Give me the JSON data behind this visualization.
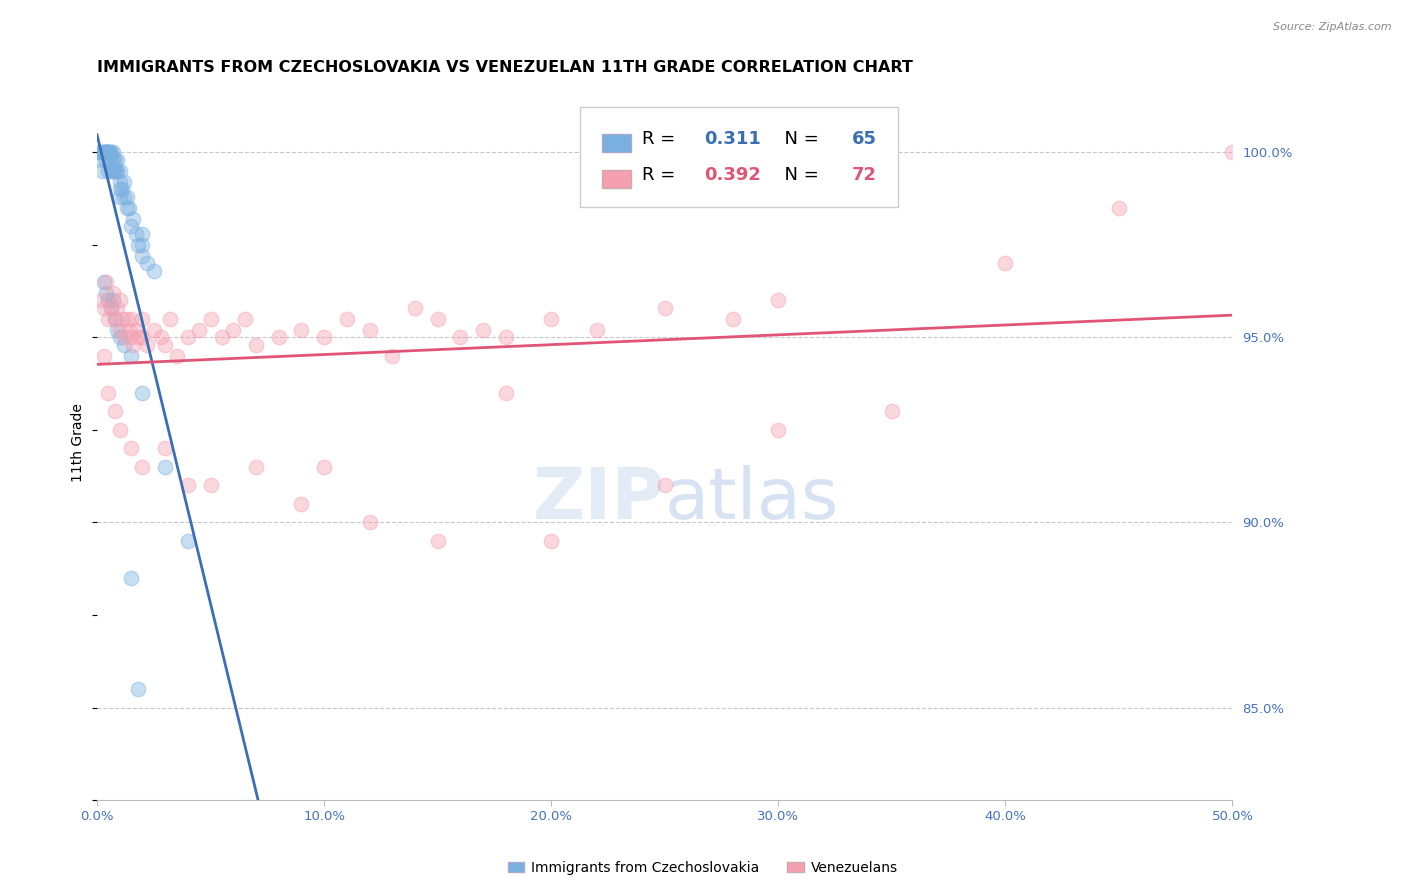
{
  "title": "IMMIGRANTS FROM CZECHOSLOVAKIA VS VENEZUELAN 11TH GRADE CORRELATION CHART",
  "source_text": "Source: ZipAtlas.com",
  "ylabel": "11th Grade",
  "right_yticks": [
    85.0,
    90.0,
    95.0,
    100.0
  ],
  "xmin": 0.0,
  "xmax": 50.0,
  "ymin": 82.5,
  "ymax": 101.8,
  "blue_color": "#7ab0e0",
  "pink_color": "#f4a0b0",
  "blue_line_color": "#3a6eb5",
  "pink_line_color": "#e05575",
  "legend_r_blue": "0.311",
  "legend_n_blue": "65",
  "legend_r_pink": "0.392",
  "legend_n_pink": "72",
  "legend_label_blue": "Immigrants from Czechoslovakia",
  "legend_label_pink": "Venezuelans",
  "blue_scatter_x": [
    0.1,
    0.15,
    0.2,
    0.2,
    0.25,
    0.3,
    0.3,
    0.35,
    0.35,
    0.4,
    0.4,
    0.45,
    0.5,
    0.5,
    0.5,
    0.5,
    0.5,
    0.55,
    0.55,
    0.6,
    0.6,
    0.65,
    0.7,
    0.7,
    0.7,
    0.75,
    0.8,
    0.8,
    0.85,
    0.9,
    0.9,
    1.0,
    1.0,
    1.0,
    1.0,
    1.1,
    1.2,
    1.2,
    1.3,
    1.3,
    1.4,
    1.5,
    1.6,
    1.7,
    1.8,
    2.0,
    2.0,
    2.0,
    2.2,
    2.5,
    0.3,
    0.4,
    0.5,
    0.6,
    0.7,
    0.8,
    0.9,
    1.0,
    1.2,
    1.5,
    2.0,
    3.0,
    4.0,
    1.5,
    1.8
  ],
  "blue_scatter_y": [
    100.0,
    100.0,
    99.8,
    99.5,
    100.0,
    100.0,
    100.0,
    100.0,
    100.0,
    100.0,
    99.8,
    100.0,
    100.0,
    100.0,
    100.0,
    99.5,
    100.0,
    99.8,
    100.0,
    99.8,
    100.0,
    99.5,
    99.5,
    99.8,
    100.0,
    99.5,
    99.5,
    99.8,
    99.5,
    99.5,
    99.8,
    99.2,
    99.0,
    99.5,
    98.8,
    99.0,
    98.8,
    99.2,
    98.5,
    98.8,
    98.5,
    98.0,
    98.2,
    97.8,
    97.5,
    97.5,
    97.2,
    97.8,
    97.0,
    96.8,
    96.5,
    96.2,
    96.0,
    95.8,
    96.0,
    95.5,
    95.2,
    95.0,
    94.8,
    94.5,
    93.5,
    91.5,
    89.5,
    88.5,
    85.5
  ],
  "pink_scatter_x": [
    0.2,
    0.3,
    0.4,
    0.5,
    0.6,
    0.7,
    0.8,
    0.9,
    1.0,
    1.0,
    1.1,
    1.2,
    1.3,
    1.4,
    1.5,
    1.5,
    1.6,
    1.7,
    1.8,
    2.0,
    2.0,
    2.2,
    2.5,
    2.8,
    3.0,
    3.2,
    3.5,
    4.0,
    4.5,
    5.0,
    5.5,
    6.0,
    6.5,
    7.0,
    8.0,
    9.0,
    10.0,
    11.0,
    12.0,
    13.0,
    14.0,
    15.0,
    16.0,
    17.0,
    18.0,
    20.0,
    22.0,
    25.0,
    28.0,
    30.0,
    0.3,
    0.5,
    0.8,
    1.0,
    1.5,
    2.0,
    3.0,
    4.0,
    5.0,
    7.0,
    9.0,
    12.0,
    15.0,
    20.0,
    25.0,
    35.0,
    40.0,
    45.0,
    50.0,
    18.0,
    10.0,
    30.0
  ],
  "pink_scatter_y": [
    96.0,
    95.8,
    96.5,
    95.5,
    95.8,
    96.2,
    95.5,
    95.8,
    95.2,
    96.0,
    95.5,
    95.0,
    95.5,
    95.2,
    95.0,
    95.5,
    94.8,
    95.2,
    95.0,
    95.0,
    95.5,
    94.8,
    95.2,
    95.0,
    94.8,
    95.5,
    94.5,
    95.0,
    95.2,
    95.5,
    95.0,
    95.2,
    95.5,
    94.8,
    95.0,
    95.2,
    95.0,
    95.5,
    95.2,
    94.5,
    95.8,
    95.5,
    95.0,
    95.2,
    95.0,
    95.5,
    95.2,
    95.8,
    95.5,
    96.0,
    94.5,
    93.5,
    93.0,
    92.5,
    92.0,
    91.5,
    92.0,
    91.0,
    91.0,
    91.5,
    90.5,
    90.0,
    89.5,
    89.5,
    91.0,
    93.0,
    97.0,
    98.5,
    100.0,
    93.5,
    91.5,
    92.5
  ],
  "marker_size": 110,
  "marker_alpha": 0.42,
  "grid_color": "#c8c8c8",
  "title_fontsize": 11.5,
  "axis_label_fontsize": 10,
  "tick_fontsize": 9.5,
  "right_tick_color": "#4472c4",
  "bottom_tick_color": "#4472c4"
}
